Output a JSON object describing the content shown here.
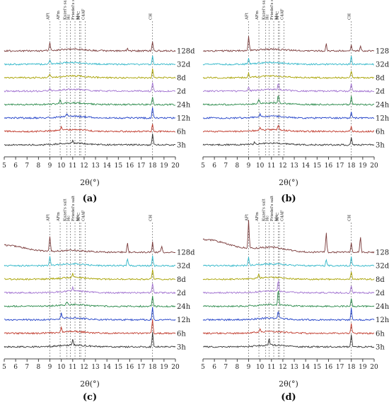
{
  "chart_data": [
    {
      "type": "line",
      "panel_label": "(a)",
      "xlabel": "2θ(°)",
      "xlim": [
        5,
        20
      ],
      "x_ticks": [
        "5",
        "6",
        "7",
        "8",
        "9",
        "10",
        "11",
        "12",
        "13",
        "14",
        "15",
        "16",
        "17",
        "18",
        "19",
        "20"
      ],
      "phase_lines": [
        {
          "name": "AFt",
          "x": 9.0
        },
        {
          "name": "AFm",
          "x": 9.9
        },
        {
          "name": "Kuzel's salt",
          "x": 10.5
        },
        {
          "name": "Hc",
          "x": 10.8
        },
        {
          "name": "Friedel's salt",
          "x": 11.2
        },
        {
          "name": "Mc",
          "x": 11.6
        },
        {
          "name": "M\"C",
          "x": 11.7
        },
        {
          "name": "C4AF",
          "x": 12.1
        },
        {
          "name": "CH",
          "x": 18.0
        }
      ],
      "series": [
        {
          "name": "128d",
          "color": "#7a3a3a",
          "peaks": [
            [
              9.0,
              12
            ],
            [
              18.0,
              13
            ],
            [
              15.8,
              4
            ]
          ]
        },
        {
          "name": "32d",
          "color": "#2fb6c8",
          "peaks": [
            [
              9.0,
              6
            ],
            [
              18.0,
              13
            ]
          ]
        },
        {
          "name": "8d",
          "color": "#a8a200",
          "peaks": [
            [
              9.0,
              5
            ],
            [
              18.0,
              12
            ]
          ]
        },
        {
          "name": "2d",
          "color": "#a070d0",
          "peaks": [
            [
              9.0,
              4
            ],
            [
              18.0,
              12
            ]
          ]
        },
        {
          "name": "24h",
          "color": "#2a8a4a",
          "peaks": [
            [
              9.9,
              5
            ],
            [
              18.0,
              11
            ]
          ]
        },
        {
          "name": "12h",
          "color": "#2040c8",
          "peaks": [
            [
              10.5,
              4
            ],
            [
              18.0,
              16
            ]
          ]
        },
        {
          "name": "6h",
          "color": "#c0392b",
          "peaks": [
            [
              10.0,
              5
            ],
            [
              18.0,
              10
            ]
          ]
        },
        {
          "name": "3h",
          "color": "#333333",
          "peaks": [
            [
              11.0,
              3
            ],
            [
              18.0,
              16
            ]
          ]
        }
      ]
    },
    {
      "type": "line",
      "panel_label": "(b)",
      "xlabel": "2θ(°)",
      "xlim": [
        5,
        20
      ],
      "x_ticks": [
        "5",
        "6",
        "7",
        "8",
        "9",
        "10",
        "11",
        "12",
        "13",
        "14",
        "15",
        "16",
        "17",
        "18",
        "19",
        "20"
      ],
      "phase_lines": [
        {
          "name": "AFt",
          "x": 9.0
        },
        {
          "name": "AFm",
          "x": 9.9
        },
        {
          "name": "Kuzel's salt",
          "x": 10.5
        },
        {
          "name": "Hc",
          "x": 10.8
        },
        {
          "name": "Friedel's salt",
          "x": 11.2
        },
        {
          "name": "Mc",
          "x": 11.6
        },
        {
          "name": "M\"C",
          "x": 11.7
        },
        {
          "name": "C4AF",
          "x": 12.1
        },
        {
          "name": "CH",
          "x": 18.0
        }
      ],
      "series": [
        {
          "name": "128d",
          "color": "#7a3a3a",
          "peaks": [
            [
              9.0,
              20
            ],
            [
              15.8,
              10
            ],
            [
              18.0,
              8
            ],
            [
              18.8,
              6
            ]
          ]
        },
        {
          "name": "32d",
          "color": "#2fb6c8",
          "peaks": [
            [
              9.0,
              8
            ],
            [
              18.0,
              12
            ]
          ]
        },
        {
          "name": "8d",
          "color": "#a8a200",
          "peaks": [
            [
              9.0,
              6
            ],
            [
              18.0,
              10
            ]
          ]
        },
        {
          "name": "2d",
          "color": "#a070d0",
          "peaks": [
            [
              9.0,
              5
            ],
            [
              11.6,
              10
            ],
            [
              18.0,
              10
            ]
          ]
        },
        {
          "name": "24h",
          "color": "#2a8a4a",
          "peaks": [
            [
              9.9,
              5
            ],
            [
              11.6,
              12
            ],
            [
              18.0,
              12
            ]
          ]
        },
        {
          "name": "12h",
          "color": "#2040c8",
          "peaks": [
            [
              10.0,
              4
            ],
            [
              18.0,
              9
            ]
          ]
        },
        {
          "name": "6h",
          "color": "#c0392b",
          "peaks": [
            [
              10.0,
              4
            ],
            [
              11.6,
              8
            ],
            [
              18.0,
              8
            ]
          ]
        },
        {
          "name": "3h",
          "color": "#333333",
          "peaks": [
            [
              9.5,
              3
            ],
            [
              18.0,
              10
            ]
          ]
        }
      ]
    },
    {
      "type": "line",
      "panel_label": "(c)",
      "xlabel": "2θ(°)",
      "xlim": [
        5,
        20
      ],
      "x_ticks": [
        "5",
        "6",
        "7",
        "8",
        "9",
        "10",
        "11",
        "12",
        "13",
        "14",
        "15",
        "16",
        "17",
        "18",
        "19",
        "20"
      ],
      "phase_lines": [
        {
          "name": "AFt",
          "x": 9.0
        },
        {
          "name": "AFm",
          "x": 9.9
        },
        {
          "name": "Kuzel's salt",
          "x": 10.5
        },
        {
          "name": "Hc",
          "x": 10.8
        },
        {
          "name": "Friedel's salt",
          "x": 11.2
        },
        {
          "name": "Mc",
          "x": 11.6
        },
        {
          "name": "M\"C",
          "x": 11.7
        },
        {
          "name": "C4AF",
          "x": 12.1
        },
        {
          "name": "CH",
          "x": 18.0
        }
      ],
      "series": [
        {
          "name": "128d",
          "color": "#7a3a3a",
          "peaks": [
            [
              9.0,
              22
            ],
            [
              15.8,
              14
            ],
            [
              18.0,
              14
            ],
            [
              18.8,
              8
            ]
          ]
        },
        {
          "name": "32d",
          "color": "#2fb6c8",
          "peaks": [
            [
              9.0,
              14
            ],
            [
              15.8,
              10
            ],
            [
              18.0,
              14
            ]
          ]
        },
        {
          "name": "8d",
          "color": "#a8a200",
          "peaks": [
            [
              11.0,
              6
            ],
            [
              18.0,
              14
            ]
          ]
        },
        {
          "name": "2d",
          "color": "#a070d0",
          "peaks": [
            [
              11.0,
              5
            ],
            [
              18.0,
              14
            ]
          ]
        },
        {
          "name": "24h",
          "color": "#2a8a4a",
          "peaks": [
            [
              10.5,
              4
            ],
            [
              18.0,
              14
            ]
          ]
        },
        {
          "name": "12h",
          "color": "#2040c8",
          "peaks": [
            [
              10.0,
              8
            ],
            [
              18.0,
              18
            ]
          ]
        },
        {
          "name": "6h",
          "color": "#c0392b",
          "peaks": [
            [
              10.0,
              7
            ],
            [
              18.0,
              20
            ]
          ]
        },
        {
          "name": "3h",
          "color": "#333333",
          "peaks": [
            [
              11.0,
              8
            ],
            [
              18.0,
              20
            ]
          ]
        }
      ]
    },
    {
      "type": "line",
      "panel_label": "(d)",
      "xlabel": "2θ(°)",
      "xlim": [
        5,
        20
      ],
      "x_ticks": [
        "5",
        "6",
        "7",
        "8",
        "9",
        "10",
        "11",
        "12",
        "13",
        "14",
        "15",
        "16",
        "17",
        "18",
        "19",
        "20"
      ],
      "phase_lines": [
        {
          "name": "AFt",
          "x": 9.0
        },
        {
          "name": "AFm",
          "x": 9.9
        },
        {
          "name": "Kuzel's salt",
          "x": 10.5
        },
        {
          "name": "Hc",
          "x": 10.8
        },
        {
          "name": "Friedel's salt",
          "x": 11.2
        },
        {
          "name": "Mc",
          "x": 11.6
        },
        {
          "name": "M\"C",
          "x": 11.7
        },
        {
          "name": "C4AF",
          "x": 12.1
        },
        {
          "name": "CH",
          "x": 18.0
        }
      ],
      "series": [
        {
          "name": "128d",
          "color": "#7a3a3a",
          "peaks": [
            [
              9.0,
              40
            ],
            [
              15.8,
              28
            ],
            [
              18.0,
              14
            ],
            [
              18.8,
              22
            ]
          ]
        },
        {
          "name": "32d",
          "color": "#2fb6c8",
          "peaks": [
            [
              9.0,
              12
            ],
            [
              15.8,
              8
            ],
            [
              18.0,
              12
            ]
          ]
        },
        {
          "name": "8d",
          "color": "#a8a200",
          "peaks": [
            [
              9.9,
              6
            ],
            [
              18.0,
              10
            ]
          ]
        },
        {
          "name": "2d",
          "color": "#a070d0",
          "peaks": [
            [
              11.6,
              16
            ],
            [
              18.0,
              10
            ]
          ]
        },
        {
          "name": "24h",
          "color": "#2a8a4a",
          "peaks": [
            [
              11.6,
              22
            ],
            [
              18.0,
              12
            ]
          ]
        },
        {
          "name": "12h",
          "color": "#2040c8",
          "peaks": [
            [
              11.6,
              10
            ],
            [
              18.0,
              16
            ]
          ]
        },
        {
          "name": "6h",
          "color": "#c0392b",
          "peaks": [
            [
              10.0,
              5
            ],
            [
              18.0,
              14
            ]
          ]
        },
        {
          "name": "3h",
          "color": "#333333",
          "peaks": [
            [
              10.8,
              10
            ],
            [
              18.0,
              18
            ]
          ]
        }
      ]
    }
  ]
}
